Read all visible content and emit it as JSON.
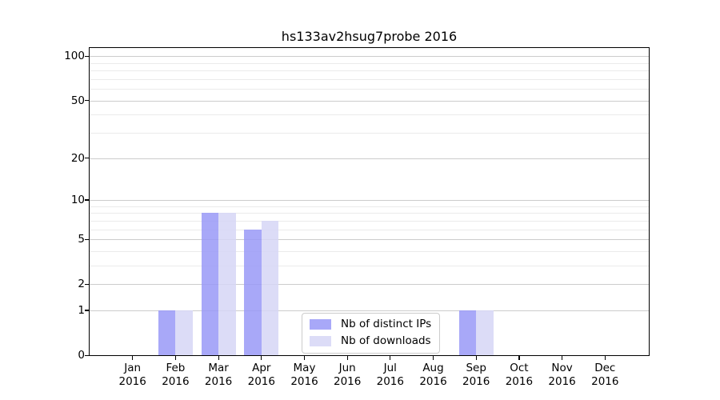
{
  "chart_data": {
    "type": "bar",
    "title": "hs133av2hsug7probe 2016",
    "x_year": "2016",
    "categories": [
      "Jan",
      "Feb",
      "Mar",
      "Apr",
      "May",
      "Jun",
      "Jul",
      "Aug",
      "Sep",
      "Oct",
      "Nov",
      "Dec"
    ],
    "series": [
      {
        "name": "Nb of distinct IPs",
        "color": "#9999f7",
        "values": [
          0,
          1,
          8,
          6,
          0,
          0,
          0,
          0,
          1,
          0,
          0,
          0
        ]
      },
      {
        "name": "Nb of downloads",
        "color": "#d6d6f6",
        "values": [
          0,
          1,
          8,
          7,
          0,
          0,
          0,
          0,
          1,
          0,
          0,
          0
        ]
      }
    ],
    "yscale": "log1p",
    "ylim": [
      0,
      113
    ],
    "y_tick_labels": [
      0,
      1,
      2,
      5,
      10,
      20,
      50,
      100
    ],
    "y_major_gridlines": [
      1,
      2,
      5,
      10,
      20,
      50,
      100
    ],
    "y_minor_gridlines": [
      3,
      4,
      6,
      7,
      8,
      9,
      30,
      40,
      60,
      70,
      80,
      90
    ],
    "legend_position": "lower center",
    "grid": "on",
    "colors": {
      "major_grid": "#cccccc",
      "minor_grid": "#ebebeb",
      "axis": "#000000",
      "legend_border": "#cccccc"
    }
  }
}
